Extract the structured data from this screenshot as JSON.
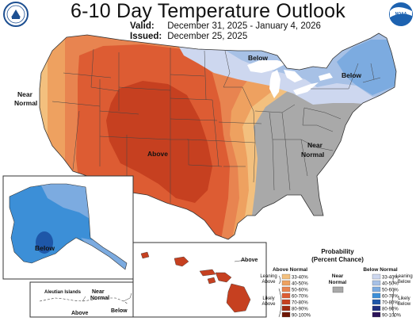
{
  "header": {
    "title": "6-10 Day Temperature Outlook",
    "valid_label": "Valid:",
    "valid_dates": "December 31, 2025 - January 4, 2026",
    "issued_label": "Issued:",
    "issued_date": "December 25, 2025"
  },
  "logos": {
    "left": "noaa-seal-icon",
    "right": "noaa-logo-icon"
  },
  "map_labels": {
    "near_normal_west": [
      "Near",
      "Normal"
    ],
    "below_north": "Below",
    "below_northeast": "Below",
    "above_center": "Above",
    "near_normal_east": [
      "Near",
      "Normal"
    ],
    "alaska_below": "Below",
    "aleutian_islands": "Aleutian Islands",
    "aleutian_near_normal": [
      "Near",
      "Normal"
    ],
    "aleutian_above": "Above",
    "aleutian_below": "Below",
    "hawaii_above": "Above"
  },
  "legend": {
    "title": [
      "Probability",
      "(Percent Chance)"
    ],
    "above_header": "Above Normal",
    "below_header": "Below Normal",
    "near_label": [
      "Near",
      "Normal"
    ],
    "leaning_above": [
      "Leaning",
      "Above"
    ],
    "likely_above": [
      "Likely",
      "Above"
    ],
    "leaning_below": [
      "Leaning",
      "Below"
    ],
    "likely_below": [
      "Likely",
      "Below"
    ],
    "above_bins": [
      {
        "label": "33-40%",
        "color": "#f3c07e"
      },
      {
        "label": "40-50%",
        "color": "#eea160"
      },
      {
        "label": "50-60%",
        "color": "#e88450"
      },
      {
        "label": "60-70%",
        "color": "#dd5c33"
      },
      {
        "label": "70-80%",
        "color": "#c64020"
      },
      {
        "label": "80-90%",
        "color": "#9f2a12"
      },
      {
        "label": "90-100%",
        "color": "#6d1605"
      }
    ],
    "below_bins": [
      {
        "label": "33-40%",
        "color": "#cdd7ef"
      },
      {
        "label": "40-50%",
        "color": "#a7c1e6"
      },
      {
        "label": "50-60%",
        "color": "#7cabe0"
      },
      {
        "label": "60-70%",
        "color": "#3c8fd7"
      },
      {
        "label": "70-80%",
        "color": "#1e57a8"
      },
      {
        "label": "80-90%",
        "color": "#1f2f7e"
      },
      {
        "label": "90-100%",
        "color": "#2b1358"
      }
    ],
    "near_color": "#a9a9a9"
  }
}
